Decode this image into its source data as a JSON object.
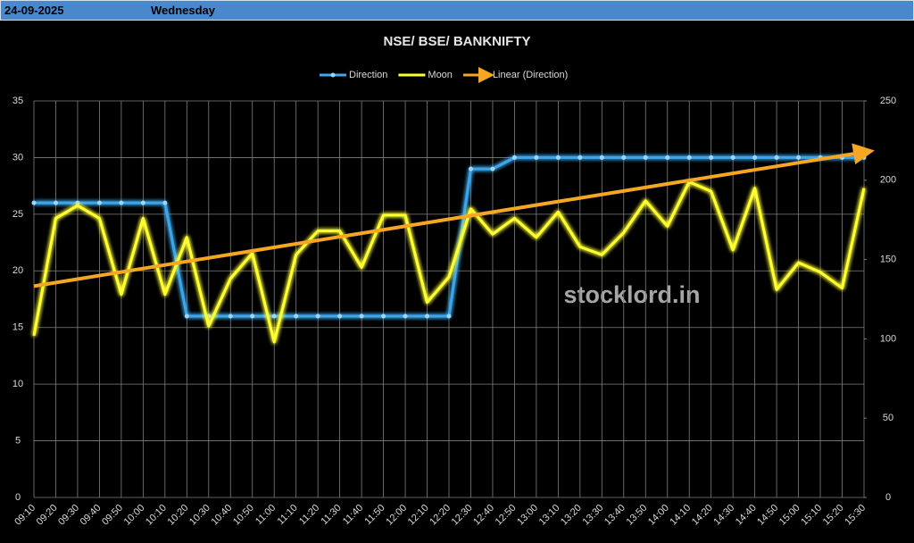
{
  "header": {
    "date": "24-09-2025",
    "day": "Wednesday"
  },
  "watermark": "stocklord.in",
  "chart_data": {
    "type": "line",
    "title": "NSE/ BSE/ BANKNIFTY",
    "categories": [
      "09:10",
      "09:20",
      "09:30",
      "09:40",
      "09:50",
      "10:00",
      "10:10",
      "10:20",
      "10:30",
      "10:40",
      "10:50",
      "11:00",
      "11:10",
      "11:20",
      "11:30",
      "11:40",
      "11:50",
      "12:00",
      "12:10",
      "12:20",
      "12:30",
      "12:40",
      "12:50",
      "13:00",
      "13:10",
      "13:20",
      "13:30",
      "13:40",
      "13:50",
      "14:00",
      "14:10",
      "14:20",
      "14:30",
      "14:40",
      "14:50",
      "15:00",
      "15:10",
      "15:20",
      "15:30"
    ],
    "series": [
      {
        "name": "Direction",
        "color": "#3ea6ea",
        "axis": "y",
        "values": [
          26,
          26,
          26,
          26,
          26,
          26,
          26,
          16,
          16,
          16,
          16,
          16,
          16,
          16,
          16,
          16,
          16,
          16,
          16,
          16,
          29,
          29,
          30,
          30,
          30,
          30,
          30,
          30,
          30,
          30,
          30,
          30,
          30,
          30,
          30,
          30,
          30,
          30,
          30
        ]
      },
      {
        "name": "Moon",
        "color": "#ffff33",
        "axis": "y2",
        "values": [
          102,
          176,
          184,
          176,
          128,
          176,
          128,
          164,
          108,
          138,
          154,
          98,
          153,
          168,
          168,
          145,
          178,
          178,
          123,
          139,
          182,
          166,
          176,
          164,
          180,
          158,
          153,
          167,
          187,
          171,
          199,
          193,
          156,
          195,
          131,
          148,
          142,
          132,
          195
        ]
      },
      {
        "name": "Linear (Direction)",
        "color": "#f5a623",
        "type": "trendline",
        "of": 0
      }
    ],
    "ylim": [
      0,
      35
    ],
    "yticks": [
      0,
      5,
      10,
      15,
      20,
      25,
      30,
      35
    ],
    "y2lim": [
      0,
      250
    ],
    "y2ticks": [
      0,
      50,
      100,
      150,
      200,
      250
    ],
    "grid": true,
    "legend": "top"
  }
}
